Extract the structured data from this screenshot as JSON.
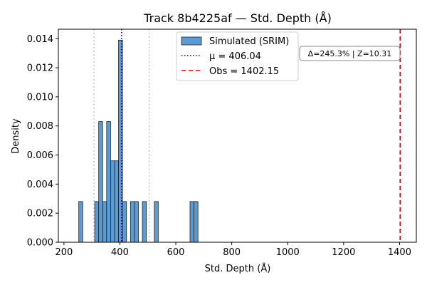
{
  "chart_data": {
    "type": "bar",
    "title": "Track 8b4225af — Std. Depth (Å)",
    "xlabel": "Std. Depth (Å)",
    "ylabel": "Density",
    "xlim": [
      180,
      1460
    ],
    "ylim": [
      0,
      0.01465
    ],
    "xticks": [
      200,
      400,
      600,
      800,
      1000,
      1200,
      1400
    ],
    "xtick_labels": [
      "200",
      "400",
      "600",
      "800",
      "1000",
      "1200",
      "1400"
    ],
    "yticks": [
      0,
      0.002,
      0.004,
      0.006,
      0.008,
      0.01,
      0.012,
      0.014
    ],
    "ytick_labels": [
      "0.000",
      "0.002",
      "0.004",
      "0.006",
      "0.008",
      "0.010",
      "0.012",
      "0.014"
    ],
    "grid": false,
    "legend_position": "upper-center",
    "series": [
      {
        "name": "Simulated (SRIM)",
        "color": "#5b9bd5",
        "edge_color": "#222222",
        "bin_width": 14.2,
        "bins": [
          {
            "left": 253.0,
            "height": 0.0028
          },
          {
            "left": 310.0,
            "height": 0.0028
          },
          {
            "left": 324.2,
            "height": 0.0083
          },
          {
            "left": 338.4,
            "height": 0.0028
          },
          {
            "left": 352.6,
            "height": 0.0083
          },
          {
            "left": 366.8,
            "height": 0.0056
          },
          {
            "left": 381.0,
            "height": 0.0056
          },
          {
            "left": 395.2,
            "height": 0.0139
          },
          {
            "left": 409.4,
            "height": 0.0028
          },
          {
            "left": 437.8,
            "height": 0.0028
          },
          {
            "left": 452.0,
            "height": 0.0028
          },
          {
            "left": 480.4,
            "height": 0.0028
          },
          {
            "left": 523.0,
            "height": 0.0028
          },
          {
            "left": 650.8,
            "height": 0.0028
          },
          {
            "left": 665.0,
            "height": 0.0028
          }
        ]
      }
    ],
    "lines": [
      {
        "name": "μ = 406.04",
        "x": 406.04,
        "color": "#0000cc",
        "style": "dotted"
      },
      {
        "name": "Obs = 1402.15",
        "x": 1402.15,
        "color": "#dd0000",
        "style": "dashed"
      },
      {
        "name": "",
        "x": 307.0,
        "color": "#bbbbbb",
        "style": "dotted"
      },
      {
        "name": "",
        "x": 505.0,
        "color": "#bbbbbb",
        "style": "dotted"
      }
    ],
    "annotation": "Δ=245.3% | Z=10.31"
  }
}
